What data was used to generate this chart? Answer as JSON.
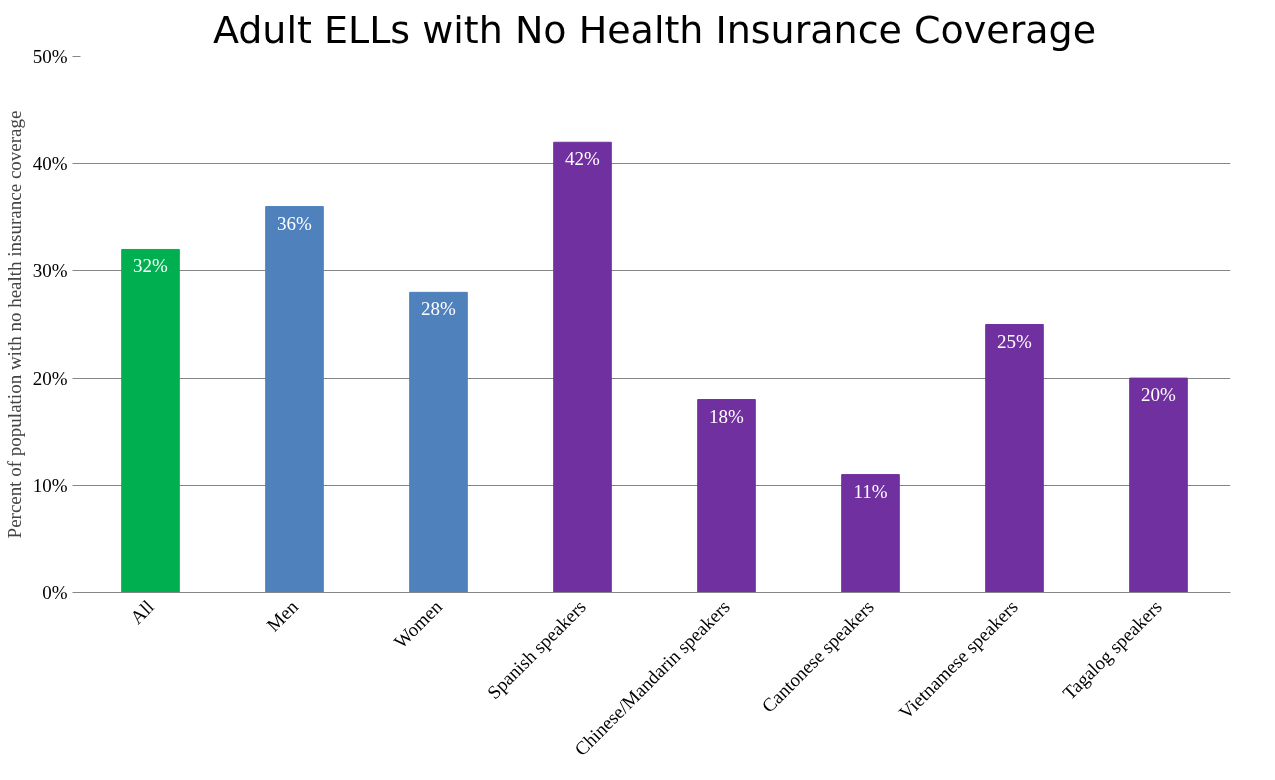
{
  "chart_data": {
    "type": "bar",
    "title": "Adult ELLs with No Health Insurance Coverage",
    "ylabel": "Percent of population with no health insurance coverage",
    "categories": [
      "All",
      "Men",
      "Women",
      "Spanish speakers",
      "Chinese/Mandarin speakers",
      "Cantonese speakers",
      "Vietnamese speakers",
      "Tagalog speakers"
    ],
    "values": [
      32,
      36,
      28,
      42,
      18,
      11,
      25,
      20
    ],
    "colors": [
      "#00b050",
      "#4f81bd",
      "#4f81bd",
      "#7030a0",
      "#7030a0",
      "#7030a0",
      "#7030a0",
      "#7030a0"
    ],
    "value_labels": [
      "32%",
      "36%",
      "28%",
      "42%",
      "18%",
      "11%",
      "25%",
      "20%"
    ],
    "ylim": [
      0,
      50
    ],
    "yticks": [
      {
        "value": 0,
        "label": "0%"
      },
      {
        "value": 10,
        "label": "10%"
      },
      {
        "value": 20,
        "label": "20%"
      },
      {
        "value": 30,
        "label": "30%"
      },
      {
        "value": 40,
        "label": "40%"
      },
      {
        "value": 50,
        "label": "50%"
      }
    ],
    "grid": "y"
  }
}
